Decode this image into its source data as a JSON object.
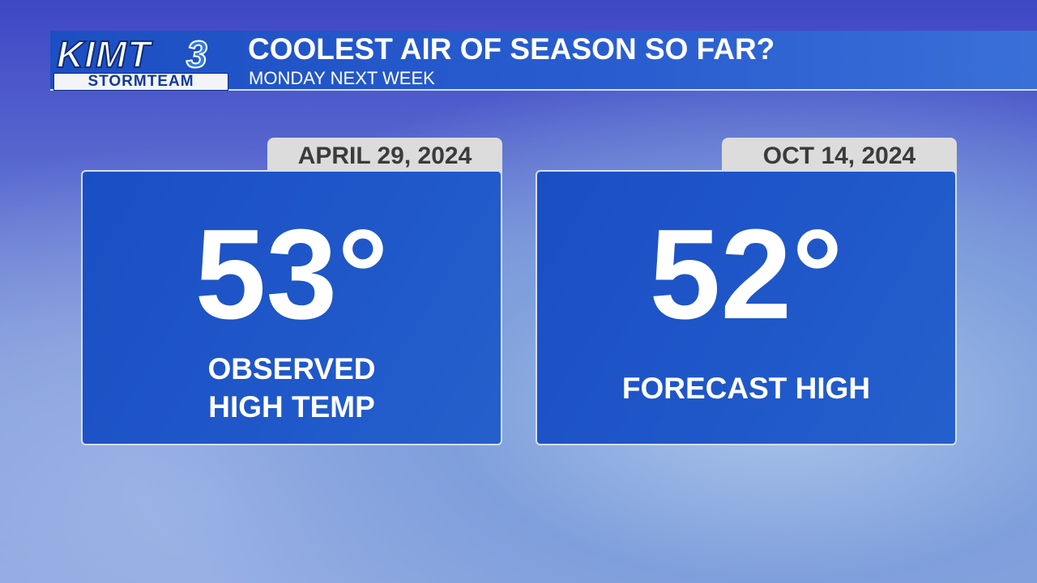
{
  "header": {
    "logo": {
      "name": "KIMT",
      "number": "3",
      "team": "STORMTEAM"
    },
    "title": "COOLEST AIR OF SEASON SO FAR?",
    "subtitle": "MONDAY NEXT WEEK"
  },
  "cards": [
    {
      "date": "APRIL 29, 2024",
      "temperature": "53°",
      "label_lines": [
        "OBSERVED",
        "HIGH TEMP"
      ]
    },
    {
      "date": "OCT 14, 2024",
      "temperature": "52°",
      "label_lines": [
        "FORECAST HIGH"
      ]
    }
  ]
}
